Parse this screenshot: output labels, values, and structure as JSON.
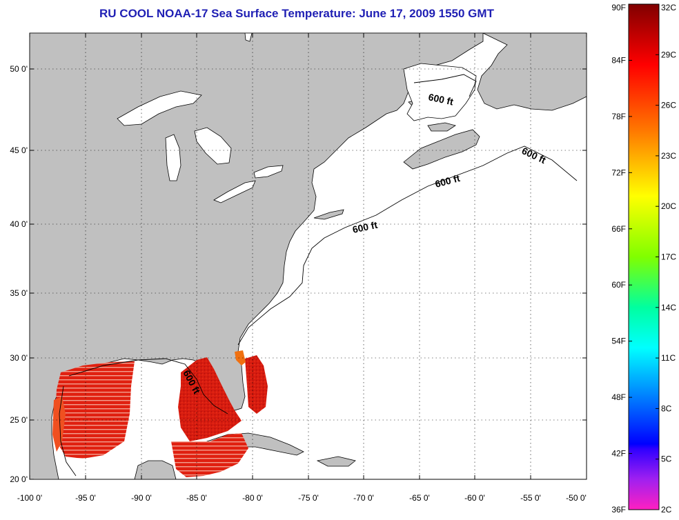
{
  "title": "RU COOL  NOAA-17  Sea Surface Temperature:  June 17, 2009 1550 GMT",
  "map": {
    "lat_labels": [
      "50 0'",
      "45 0'",
      "40 0'",
      "35 0'",
      "30 0'",
      "25 0'",
      "20 0'"
    ],
    "lon_labels": [
      "-100 0'",
      "-95 0'",
      "-90 0'",
      "-85 0'",
      "-80 0'",
      "-75 0'",
      "-70 0'",
      "-65 0'",
      "-60 0'",
      "-55 0'",
      "-50 0'"
    ],
    "lat_range": [
      20,
      52.5
    ],
    "lon_range": [
      -100,
      -50
    ],
    "depth_labels": [
      "600 ft",
      "600 ft",
      "600 ft",
      "600 ft",
      "600 ft"
    ],
    "land_color": "#c0c0c0",
    "ocean_color": "#ffffff"
  },
  "colorbar": {
    "fahrenheit_labels": [
      "90F",
      "84F",
      "78F",
      "72F",
      "66F",
      "60F",
      "54F",
      "48F",
      "42F",
      "36F"
    ],
    "celsius_labels": [
      "32C",
      "29C",
      "26C",
      "23C",
      "20C",
      "17C",
      "14C",
      "11C",
      "8C",
      "5C",
      "2C"
    ],
    "range_c": [
      2,
      32
    ]
  }
}
